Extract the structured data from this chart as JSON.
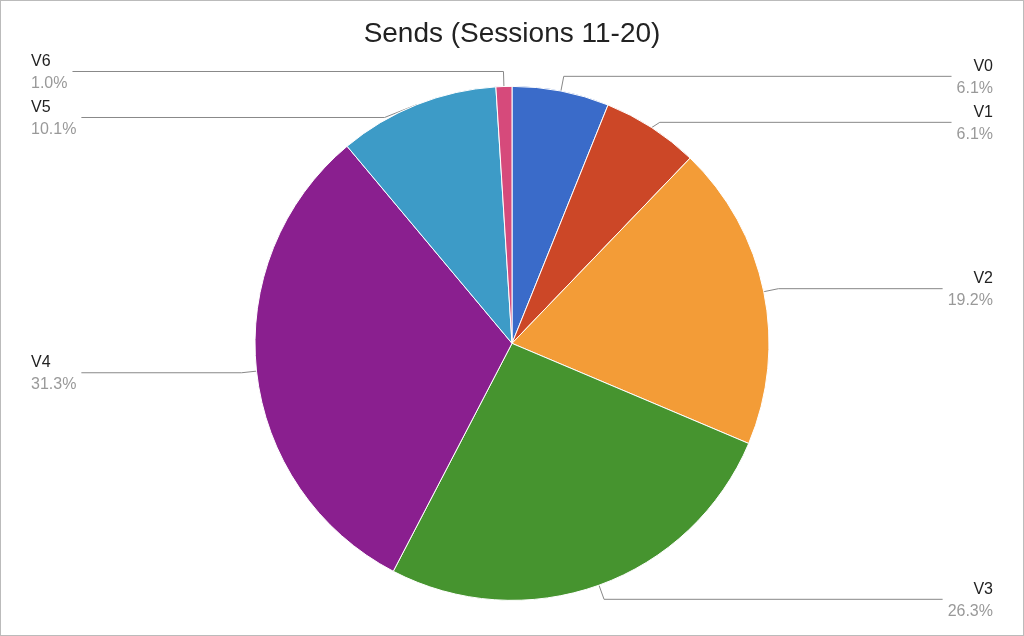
{
  "chart_data": {
    "type": "pie",
    "title": "Sends (Sessions 11-20)",
    "categories": [
      "V0",
      "V1",
      "V2",
      "V3",
      "V4",
      "V5",
      "V6"
    ],
    "values": [
      6.1,
      6.1,
      19.2,
      26.3,
      31.3,
      10.1,
      1.0
    ],
    "value_labels": [
      "6.1%",
      "6.1%",
      "19.2%",
      "26.3%",
      "31.3%",
      "10.1%",
      "1.0%"
    ],
    "colors": [
      "#3a6bc9",
      "#cc4727",
      "#f39c37",
      "#46942f",
      "#8a1f8f",
      "#3d9bc7",
      "#d64a7b"
    ],
    "legend": false
  }
}
